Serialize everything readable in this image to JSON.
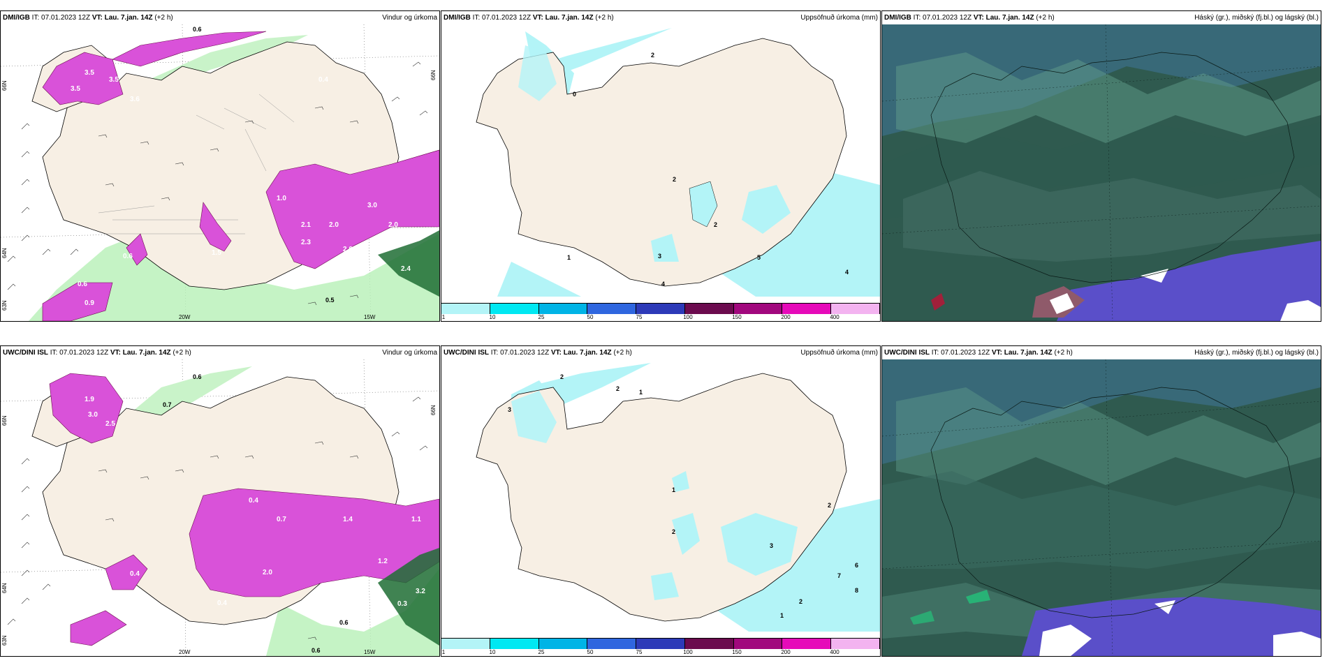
{
  "panels": [
    {
      "model": "DMI/IGB",
      "it_label": "IT:",
      "it_value": "07.01.2023 12Z",
      "vt_label": "VT:",
      "vt_value": "Lau. 7.jan. 14Z",
      "lead": "(+2 h)",
      "title": "Vindur og úrkoma"
    },
    {
      "model": "DMI/IGB",
      "it_label": "IT:",
      "it_value": "07.01.2023 12Z",
      "vt_label": "VT:",
      "vt_value": "Lau. 7.jan. 14Z",
      "lead": "(+2 h)",
      "title": "Uppsöfnuð úrkoma (mm)"
    },
    {
      "model": "DMI/IGB",
      "it_label": "IT:",
      "it_value": "07.01.2023 12Z",
      "vt_label": "VT:",
      "vt_value": "Lau. 7.jan. 14Z",
      "lead": "(+2 h)",
      "title": "Háský (gr.), miðský (fj.bl.) og lágský (bl.)"
    },
    {
      "model": "UWC/DINI ISL",
      "it_label": "IT:",
      "it_value": "07.01.2023 12Z",
      "vt_label": "VT:",
      "vt_value": "Lau. 7.jan. 14Z",
      "lead": "(+2 h)",
      "title": "Vindur og úrkoma"
    },
    {
      "model": "UWC/DINI ISL",
      "it_label": "IT:",
      "it_value": "07.01.2023 12Z",
      "vt_label": "VT:",
      "vt_value": "Lau. 7.jan. 14Z",
      "lead": "(+2 h)",
      "title": "Uppsöfnuð úrkoma (mm)"
    },
    {
      "model": "UWC/DINI ISL",
      "it_label": "IT:",
      "it_value": "07.01.2023 12Z",
      "vt_label": "VT:",
      "vt_value": "Lau. 7.jan. 14Z",
      "lead": "(+2 h)",
      "title": "Háský (gr.), miðský (fj.bl.) og lágský (bl.)"
    }
  ],
  "axes": {
    "lon_20": "20W",
    "lon_15": "15W",
    "lat_66": "66N",
    "lat_64": "64N",
    "lat_62": "63N"
  },
  "legend_ticks": [
    "1",
    "10",
    "25",
    "50",
    "75",
    "100",
    "150",
    "200",
    "400"
  ],
  "legend_colors": [
    "#b3f4f7",
    "#00e8f2",
    "#00b4e6",
    "#2f66df",
    "#2d3ab8",
    "#6b0b4e",
    "#a1087d",
    "#e60ab9",
    "#f3b3f0"
  ],
  "colors": {
    "land": "#f7efe4",
    "precip_green": "#b6f0b6",
    "precip_magenta": "#d952d9",
    "accum": "#b3f4f7",
    "cloud_dark": "#2f5a4f",
    "cloud_blue": "#3c6f8a",
    "cloud_purple": "#5a4fc9"
  },
  "p1_values": {
    "a": "0.3",
    "b": "3.5",
    "c": "3.5",
    "d": "3.6",
    "e": "3.5",
    "f": "0.6",
    "g": "0.4",
    "h": "1.0",
    "i": "2.1",
    "j": "2.3",
    "k": "2.0",
    "l": "2.0",
    "m": "2.0",
    "n": "3.0",
    "o": "0.6",
    "p": "0.9",
    "q": "0.5",
    "r": "2.4",
    "s": "1.5",
    "t": "0.6"
  },
  "p2_values": {
    "a": "2",
    "b": "0",
    "c": "2",
    "d": "2",
    "e": "3",
    "f": "5",
    "g": "1",
    "h": "4",
    "i": "4"
  },
  "p4_values": {
    "a": "3.0",
    "b": "2.5",
    "c": "1.9",
    "d": "0.6",
    "e": "0.7",
    "f": "0.4",
    "g": "0.7",
    "h": "1.4",
    "i": "2.0",
    "j": "1.2",
    "k": "1.1",
    "l": "0.4",
    "m": "3.2",
    "n": "0.6",
    "o": "0.6",
    "p": "0.3",
    "q": "0.4",
    "r": "0.4"
  },
  "p5_values": {
    "a": "2",
    "b": "2",
    "c": "1",
    "d": "3",
    "e": "1",
    "f": "2",
    "g": "2",
    "h": "3",
    "i": "6",
    "j": "7",
    "k": "8",
    "l": "2",
    "m": "1"
  }
}
